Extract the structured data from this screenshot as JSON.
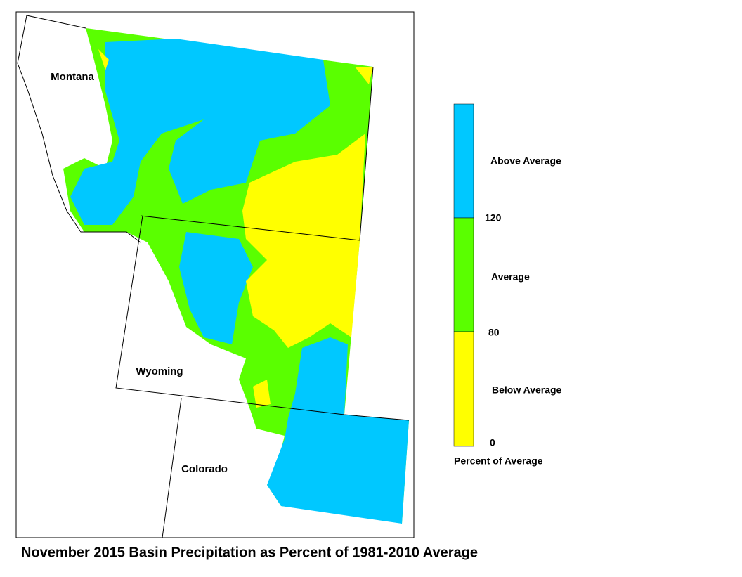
{
  "title": "November 2015 Basin Precipitation as Percent of 1981-2010 Average",
  "map": {
    "state_labels": [
      "Montana",
      "Wyoming",
      "Colorado"
    ]
  },
  "legend": {
    "bands": [
      {
        "label": "Above Average",
        "color": "#00c8ff"
      },
      {
        "label": "Average",
        "color": "#5aff00"
      },
      {
        "label": "Below Average",
        "color": "#ffff00"
      }
    ],
    "ticks": [
      120,
      80,
      0
    ],
    "caption": "Percent of Average"
  }
}
